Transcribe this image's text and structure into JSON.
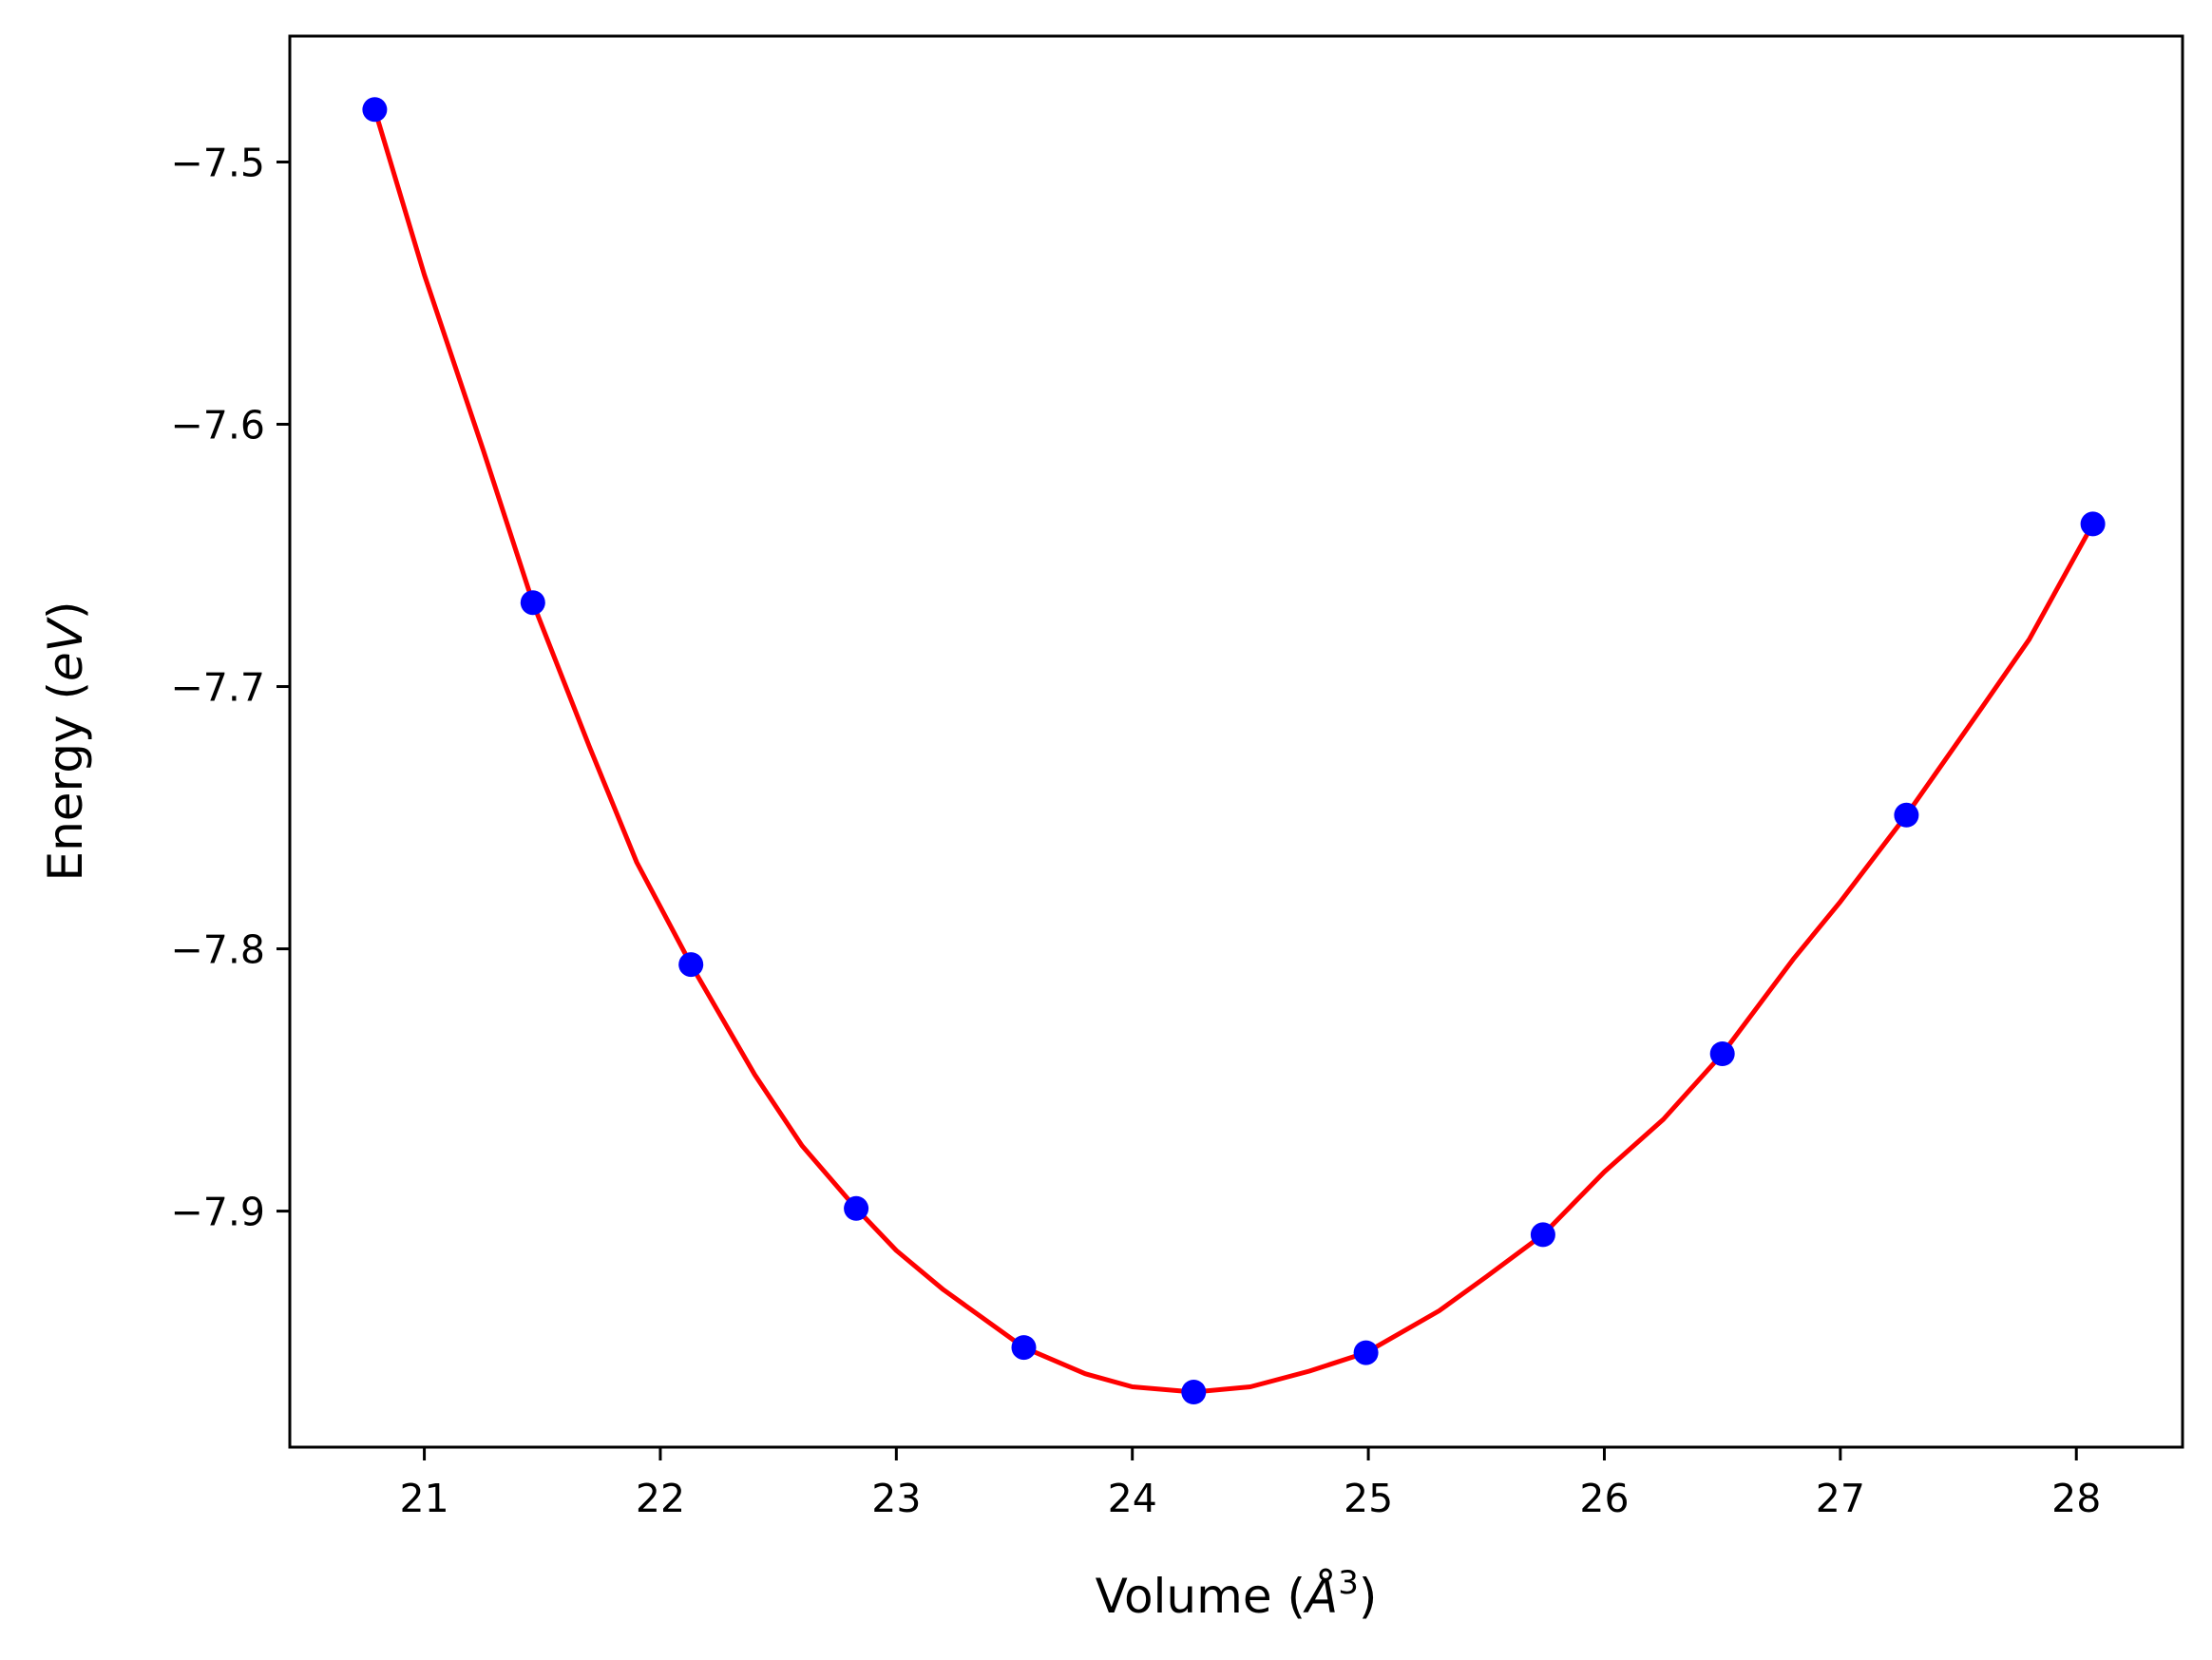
{
  "chart_data": {
    "type": "scatter",
    "title": "",
    "xlabel": {
      "prefix": "Volume (",
      "unit": "Å",
      "exponent": "3",
      "suffix": ")"
    },
    "ylabel": {
      "prefix": "Energy (",
      "unit": "eV",
      "suffix": ")"
    },
    "xlim": [
      20.43,
      28.45
    ],
    "ylim": [
      -7.99,
      -7.452
    ],
    "xticks": [
      21,
      22,
      23,
      24,
      25,
      26,
      27,
      28
    ],
    "xtick_labels": [
      "21",
      "22",
      "23",
      "24",
      "25",
      "26",
      "27",
      "28"
    ],
    "yticks": [
      -7.5,
      -7.6,
      -7.7,
      -7.8,
      -7.9
    ],
    "ytick_labels": [
      "−7.5",
      "−7.6",
      "−7.7",
      "−7.8",
      "−7.9"
    ],
    "grid": false,
    "colors": {
      "points": "#0000ff",
      "fit": "#ff0000"
    },
    "points": [
      {
        "x": 20.79,
        "y": -7.48
      },
      {
        "x": 21.46,
        "y": -7.668
      },
      {
        "x": 22.13,
        "y": -7.806
      },
      {
        "x": 22.83,
        "y": -7.899
      },
      {
        "x": 23.54,
        "y": -7.952
      },
      {
        "x": 24.26,
        "y": -7.969
      },
      {
        "x": 24.99,
        "y": -7.954
      },
      {
        "x": 25.74,
        "y": -7.909
      },
      {
        "x": 26.5,
        "y": -7.84
      },
      {
        "x": 27.28,
        "y": -7.749
      },
      {
        "x": 28.07,
        "y": -7.638
      }
    ],
    "fit_curve": {
      "x": [
        20.79,
        21.0,
        21.25,
        21.46,
        21.7,
        21.9,
        22.13,
        22.4,
        22.6,
        22.83,
        23.0,
        23.2,
        23.54,
        23.8,
        24.0,
        24.26,
        24.5,
        24.75,
        24.99,
        25.3,
        25.5,
        25.74,
        26.0,
        26.25,
        26.5,
        26.8,
        27.0,
        27.28,
        27.6,
        27.8,
        28.07
      ],
      "y": [
        -7.48,
        -7.543,
        -7.61,
        -7.668,
        -7.723,
        -7.767,
        -7.806,
        -7.848,
        -7.875,
        -7.899,
        -7.915,
        -7.93,
        -7.952,
        -7.962,
        -7.967,
        -7.969,
        -7.967,
        -7.961,
        -7.954,
        -7.938,
        -7.925,
        -7.909,
        -7.885,
        -7.865,
        -7.84,
        -7.804,
        -7.782,
        -7.749,
        -7.708,
        -7.682,
        -7.638
      ]
    }
  }
}
